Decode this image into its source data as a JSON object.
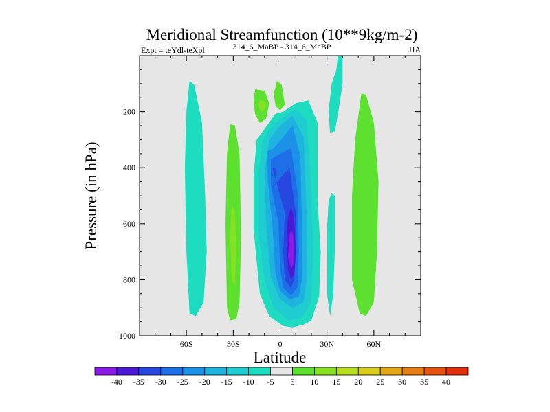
{
  "chart_data": {
    "type": "contour",
    "title": "Meridional Streamfunction (10**9kg/m-2)",
    "subtitle_left": "Expt = teYdl-teXpl",
    "subtitle_center": "314_6_MaBP - 314_6_MaBP",
    "subtitle_right": "JJA",
    "xlabel": "Latitude",
    "ylabel": "Pressure (in hPa)",
    "xlim": [
      -90,
      90
    ],
    "ylim": [
      1000,
      0
    ],
    "x_ticks": [
      {
        "value": -60,
        "label": "60S"
      },
      {
        "value": -30,
        "label": "30S"
      },
      {
        "value": 0,
        "label": "0"
      },
      {
        "value": 30,
        "label": "30N"
      },
      {
        "value": 60,
        "label": "60N"
      }
    ],
    "y_ticks": [
      {
        "value": 200,
        "label": "200"
      },
      {
        "value": 400,
        "label": "400"
      },
      {
        "value": 600,
        "label": "600"
      },
      {
        "value": 800,
        "label": "800"
      },
      {
        "value": 1000,
        "label": "1000"
      }
    ],
    "colorbar": {
      "levels": [
        "-40",
        "-35",
        "-30",
        "-25",
        "-20",
        "-15",
        "-10",
        "-5",
        "5",
        "10",
        "15",
        "20",
        "25",
        "30",
        "35",
        "40"
      ],
      "colors": [
        "#8a1be6",
        "#4b19d6",
        "#2648e0",
        "#1e6ee8",
        "#1b92e8",
        "#1fb4e0",
        "#1fccd0",
        "#1ddcbf",
        "#e6e6e6",
        "#5ee030",
        "#88e023",
        "#b8dd20",
        "#d8cc1c",
        "#e2a816",
        "#e47e12",
        "#e65210",
        "#e0300c"
      ]
    },
    "regions": [
      {
        "level": "-5",
        "color": "#1ddcbf",
        "points": [
          [
            -58,
            90
          ],
          [
            -55,
            105
          ],
          [
            -50,
            240
          ],
          [
            -48,
            500
          ],
          [
            -47,
            700
          ],
          [
            -49,
            880
          ],
          [
            -54,
            930
          ],
          [
            -58,
            920
          ],
          [
            -60,
            700
          ],
          [
            -61,
            400
          ],
          [
            -60,
            200
          ]
        ]
      },
      {
        "level": "5",
        "color": "#5ee030",
        "points": [
          [
            -32,
            245
          ],
          [
            -29,
            248
          ],
          [
            -26,
            350
          ],
          [
            -25,
            650
          ],
          [
            -26,
            880
          ],
          [
            -28,
            940
          ],
          [
            -32,
            945
          ],
          [
            -34,
            900
          ],
          [
            -35,
            600
          ],
          [
            -34,
            350
          ]
        ]
      },
      {
        "level": "10",
        "color": "#88e023",
        "points": [
          [
            -31,
            530
          ],
          [
            -29,
            560
          ],
          [
            -28,
            700
          ],
          [
            -29,
            820
          ],
          [
            -31,
            800
          ],
          [
            -32,
            650
          ]
        ]
      },
      {
        "level": "5",
        "color": "#5ee030",
        "points": [
          [
            -16,
            120
          ],
          [
            -10,
            125
          ],
          [
            -7,
            170
          ],
          [
            -9,
            225
          ],
          [
            -13,
            240
          ],
          [
            -16,
            210
          ],
          [
            -17,
            160
          ]
        ]
      },
      {
        "level": "10",
        "color": "#88e023",
        "points": [
          [
            -13,
            160
          ],
          [
            -10,
            162
          ],
          [
            -9,
            180
          ],
          [
            -11,
            200
          ],
          [
            -13,
            192
          ],
          [
            -14,
            175
          ]
        ]
      },
      {
        "level": "5",
        "color": "#5ee030",
        "points": [
          [
            -2,
            90
          ],
          [
            1,
            105
          ],
          [
            3,
            175
          ],
          [
            0,
            195
          ],
          [
            -3,
            180
          ],
          [
            -4,
            135
          ]
        ]
      },
      {
        "level": "-5",
        "color": "#1ddcbf",
        "points": [
          [
            -3,
            208
          ],
          [
            2,
            200
          ],
          [
            10,
            170
          ],
          [
            18,
            160
          ],
          [
            24,
            240
          ],
          [
            24,
            520
          ],
          [
            26,
            700
          ],
          [
            25,
            860
          ],
          [
            20,
            945
          ],
          [
            15,
            960
          ],
          [
            8,
            970
          ],
          [
            2,
            965
          ],
          [
            -7,
            930
          ],
          [
            -13,
            850
          ],
          [
            -17,
            620
          ],
          [
            -17,
            430
          ],
          [
            -15,
            300
          ]
        ]
      },
      {
        "level": "-10",
        "color": "#1fccd0",
        "points": [
          [
            -6,
            255
          ],
          [
            3,
            215
          ],
          [
            10,
            190
          ],
          [
            17,
            230
          ],
          [
            20,
            480
          ],
          [
            21,
            700
          ],
          [
            20,
            880
          ],
          [
            14,
            935
          ],
          [
            5,
            945
          ],
          [
            -4,
            900
          ],
          [
            -10,
            800
          ],
          [
            -14,
            620
          ],
          [
            -14,
            420
          ],
          [
            -11,
            300
          ]
        ]
      },
      {
        "level": "-15",
        "color": "#1fb4e0",
        "points": [
          [
            -7,
            300
          ],
          [
            0,
            250
          ],
          [
            8,
            215
          ],
          [
            15,
            290
          ],
          [
            17,
            560
          ],
          [
            17,
            800
          ],
          [
            15,
            880
          ],
          [
            8,
            900
          ],
          [
            0,
            870
          ],
          [
            -6,
            790
          ],
          [
            -9,
            600
          ],
          [
            -10,
            420
          ]
        ]
      },
      {
        "level": "-20",
        "color": "#1b92e8",
        "points": [
          [
            -8,
            340
          ],
          [
            -4,
            330
          ],
          [
            8,
            250
          ],
          [
            13,
            360
          ],
          [
            14,
            600
          ],
          [
            14,
            800
          ],
          [
            12,
            860
          ],
          [
            6,
            870
          ],
          [
            0,
            840
          ],
          [
            -3,
            780
          ],
          [
            -5,
            600
          ],
          [
            -8,
            440
          ]
        ]
      },
      {
        "level": "-25",
        "color": "#1e6ee8",
        "points": [
          [
            -6,
            370
          ],
          [
            -3,
            360
          ],
          [
            7,
            330
          ],
          [
            11,
            480
          ],
          [
            12,
            700
          ],
          [
            11,
            830
          ],
          [
            7,
            855
          ],
          [
            2,
            830
          ],
          [
            0,
            760
          ],
          [
            -1,
            600
          ],
          [
            -6,
            460
          ]
        ]
      },
      {
        "level": "-30",
        "color": "#2648e0",
        "points": [
          [
            -5,
            400
          ],
          [
            -3,
            400
          ],
          [
            -3,
            460
          ],
          [
            -5,
            470
          ],
          [
            6,
            400
          ],
          [
            10,
            560
          ],
          [
            10,
            720
          ],
          [
            9,
            800
          ],
          [
            7,
            830
          ],
          [
            3,
            800
          ],
          [
            2,
            700
          ],
          [
            3,
            560
          ]
        ]
      },
      {
        "level": "-35",
        "color": "#4b19d6",
        "points": [
          [
            7,
            540
          ],
          [
            9,
            580
          ],
          [
            10,
            700
          ],
          [
            9,
            780
          ],
          [
            7,
            800
          ],
          [
            5,
            760
          ],
          [
            4,
            650
          ],
          [
            5,
            580
          ]
        ]
      },
      {
        "level": "-40",
        "color": "#8a1be6",
        "points": [
          [
            7,
            620
          ],
          [
            9,
            650
          ],
          [
            9,
            740
          ],
          [
            7,
            760
          ],
          [
            5,
            720
          ],
          [
            6,
            650
          ]
        ]
      },
      {
        "level": "-5",
        "color": "#1ddcbf",
        "points": [
          [
            37,
            0
          ],
          [
            40,
            0
          ],
          [
            40,
            100
          ],
          [
            37,
            210
          ],
          [
            35,
            270
          ],
          [
            32,
            275
          ],
          [
            31,
            200
          ],
          [
            33,
            100
          ],
          [
            36,
            50
          ]
        ]
      },
      {
        "level": "-5",
        "color": "#1ddcbf",
        "points": [
          [
            33,
            490
          ],
          [
            35,
            500
          ],
          [
            35,
            700
          ],
          [
            34,
            850
          ],
          [
            32,
            930
          ],
          [
            30,
            850
          ],
          [
            30,
            620
          ],
          [
            31,
            520
          ]
        ]
      },
      {
        "level": "5",
        "color": "#5ee030",
        "points": [
          [
            52,
            135
          ],
          [
            55,
            140
          ],
          [
            60,
            240
          ],
          [
            63,
            450
          ],
          [
            62,
            700
          ],
          [
            60,
            880
          ],
          [
            55,
            930
          ],
          [
            51,
            920
          ],
          [
            46,
            800
          ],
          [
            46,
            500
          ],
          [
            48,
            300
          ]
        ]
      }
    ]
  }
}
